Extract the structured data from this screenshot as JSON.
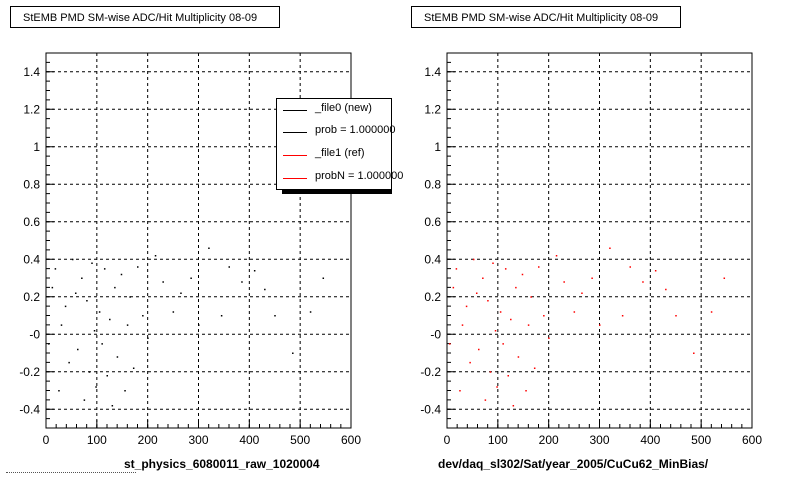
{
  "chart_data": [
    {
      "type": "scatter",
      "title": "StEMB PMD SM-wise ADC/Hit Multiplicity 08-09",
      "xlabel": "st_physics_6080011_raw_1020004",
      "ylabel": "",
      "xlim": [
        0,
        600
      ],
      "ylim": [
        -0.5,
        1.5
      ],
      "x_ticks": [
        "0",
        "100",
        "200",
        "300",
        "400",
        "500",
        "600"
      ],
      "y_ticks": [
        "-0.4",
        "-0.2",
        "-0",
        "0.2",
        "0.4",
        "0.6",
        "0.8",
        "1",
        "1.2",
        "1.4"
      ],
      "grid": true,
      "legend": {
        "placement": "top-right",
        "entries": [
          {
            "label": "_file0 (new)",
            "color": "#000000"
          },
          {
            "label": "prob = 1.000000",
            "color": "#000000"
          },
          {
            "label": "_file1 (ref)",
            "color": "#ff0000"
          },
          {
            "label": "probN = 1.000000",
            "color": "#ff0000"
          }
        ]
      },
      "series": [
        {
          "color": "#000000",
          "points": [
            [
              5,
              -0.05
            ],
            [
              12,
              0.25
            ],
            [
              18,
              0.35
            ],
            [
              25,
              -0.3
            ],
            [
              30,
              0.05
            ],
            [
              38,
              0.15
            ],
            [
              45,
              -0.15
            ],
            [
              52,
              0.4
            ],
            [
              58,
              0.22
            ],
            [
              62,
              -0.08
            ],
            [
              70,
              0.3
            ],
            [
              75,
              -0.35
            ],
            [
              80,
              0.18
            ],
            [
              85,
              -0.2
            ],
            [
              90,
              0.38
            ],
            [
              95,
              0.02
            ],
            [
              98,
              -0.28
            ],
            [
              105,
              0.12
            ],
            [
              110,
              -0.05
            ],
            [
              115,
              0.35
            ],
            [
              120,
              -0.22
            ],
            [
              125,
              0.08
            ],
            [
              130,
              -0.38
            ],
            [
              135,
              0.25
            ],
            [
              140,
              -0.12
            ],
            [
              148,
              0.32
            ],
            [
              155,
              -0.3
            ],
            [
              160,
              0.05
            ],
            [
              165,
              0.2
            ],
            [
              172,
              -0.18
            ],
            [
              180,
              0.36
            ],
            [
              190,
              0.1
            ],
            [
              200,
              -0.02
            ],
            [
              215,
              0.42
            ],
            [
              230,
              0.28
            ],
            [
              250,
              0.12
            ],
            [
              265,
              0.22
            ],
            [
              285,
              0.3
            ],
            [
              300,
              0.05
            ],
            [
              320,
              0.46
            ],
            [
              345,
              0.1
            ],
            [
              360,
              0.36
            ],
            [
              385,
              0.28
            ],
            [
              410,
              0.34
            ],
            [
              430,
              0.24
            ],
            [
              450,
              0.1
            ],
            [
              485,
              -0.1
            ],
            [
              520,
              0.12
            ],
            [
              545,
              0.3
            ]
          ]
        }
      ]
    },
    {
      "type": "scatter",
      "title": "StEMB PMD SM-wise ADC/Hit Multiplicity 08-09",
      "xlabel": "dev/daq_sl302/Sat/year_2005/CuCu62_MinBias/",
      "ylabel": "",
      "xlim": [
        0,
        600
      ],
      "ylim": [
        -0.5,
        1.5
      ],
      "x_ticks": [
        "0",
        "100",
        "200",
        "300",
        "400",
        "500",
        "600"
      ],
      "y_ticks": [
        "-0.4",
        "-0.2",
        "-0",
        "0.2",
        "0.4",
        "0.6",
        "0.8",
        "1",
        "1.2",
        "1.4"
      ],
      "grid": true,
      "series": [
        {
          "color": "#ff0000",
          "points": [
            [
              5,
              -0.05
            ],
            [
              12,
              0.25
            ],
            [
              18,
              0.35
            ],
            [
              25,
              -0.3
            ],
            [
              30,
              0.05
            ],
            [
              38,
              0.15
            ],
            [
              45,
              -0.15
            ],
            [
              52,
              0.4
            ],
            [
              58,
              0.22
            ],
            [
              62,
              -0.08
            ],
            [
              70,
              0.3
            ],
            [
              75,
              -0.35
            ],
            [
              80,
              0.18
            ],
            [
              85,
              -0.2
            ],
            [
              90,
              0.38
            ],
            [
              95,
              0.02
            ],
            [
              98,
              -0.28
            ],
            [
              105,
              0.12
            ],
            [
              110,
              -0.05
            ],
            [
              115,
              0.35
            ],
            [
              120,
              -0.22
            ],
            [
              125,
              0.08
            ],
            [
              130,
              -0.38
            ],
            [
              135,
              0.25
            ],
            [
              140,
              -0.12
            ],
            [
              148,
              0.32
            ],
            [
              155,
              -0.3
            ],
            [
              160,
              0.05
            ],
            [
              165,
              0.2
            ],
            [
              172,
              -0.18
            ],
            [
              180,
              0.36
            ],
            [
              190,
              0.1
            ],
            [
              200,
              -0.02
            ],
            [
              215,
              0.42
            ],
            [
              230,
              0.28
            ],
            [
              250,
              0.12
            ],
            [
              265,
              0.22
            ],
            [
              285,
              0.3
            ],
            [
              300,
              0.05
            ],
            [
              320,
              0.46
            ],
            [
              345,
              0.1
            ],
            [
              360,
              0.36
            ],
            [
              385,
              0.28
            ],
            [
              410,
              0.34
            ],
            [
              430,
              0.24
            ],
            [
              450,
              0.1
            ],
            [
              485,
              -0.1
            ],
            [
              520,
              0.12
            ],
            [
              545,
              0.3
            ]
          ]
        }
      ]
    }
  ]
}
